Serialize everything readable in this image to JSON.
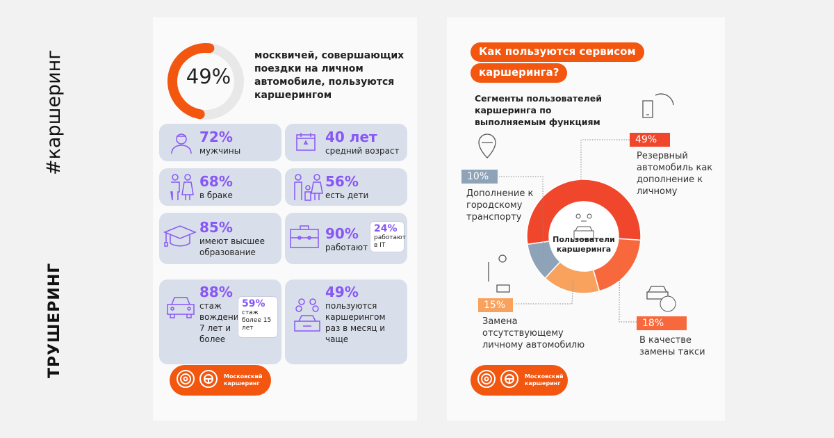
{
  "side": {
    "hashtag": "#каршеринг",
    "brand": "ТРУШЕРИНГ"
  },
  "left": {
    "ring_value": "49%",
    "ring_fraction": 0.49,
    "ring_text": "москвичей, совершающих поездки на личном автомобиле, пользуются каршерингом",
    "cards": [
      {
        "value": "72%",
        "label": "мужчины"
      },
      {
        "value": "40 лет",
        "label": "средний возраст"
      },
      {
        "value": "68%",
        "label": "в браке"
      },
      {
        "value": "56%",
        "label": "есть дети"
      },
      {
        "value": "85%",
        "label": "имеют высшее образование"
      },
      {
        "value": "90%",
        "label": "работают",
        "bubble_value": "24%",
        "bubble_label": "работают в IT"
      },
      {
        "value": "88%",
        "label": "стаж вождения 7 лет и более",
        "bubble_value": "59%",
        "bubble_label": "стаж более 15 лет"
      },
      {
        "value": "49%",
        "label": "пользуются каршерингом раз в месяц и чаще"
      }
    ],
    "logo": "Московский каршеринг"
  },
  "right": {
    "title_line1": "Как пользуются сервисом",
    "title_line2": "каршеринга?",
    "subtitle": "Сегменты пользователей каршеринга по выполняемым функциям",
    "center_label": "Пользователи каршеринга",
    "logo": "Московский каршеринг"
  },
  "chart_data": {
    "type": "pie",
    "donut": true,
    "title": "Сегменты пользователей каршеринга по выполняемым функциям",
    "categories": [
      "Резервный автомобиль как дополнение к личному",
      "В качестве замены такси",
      "Замена отсутствующему личному автомобилю",
      "Дополнение к городскому транспорту"
    ],
    "values": [
      49,
      18,
      15,
      10
    ],
    "labels": [
      "49%",
      "18%",
      "15%",
      "10%"
    ],
    "colors": [
      "#f0462b",
      "#f7693c",
      "#f9a25d",
      "#8fa3b8"
    ]
  }
}
